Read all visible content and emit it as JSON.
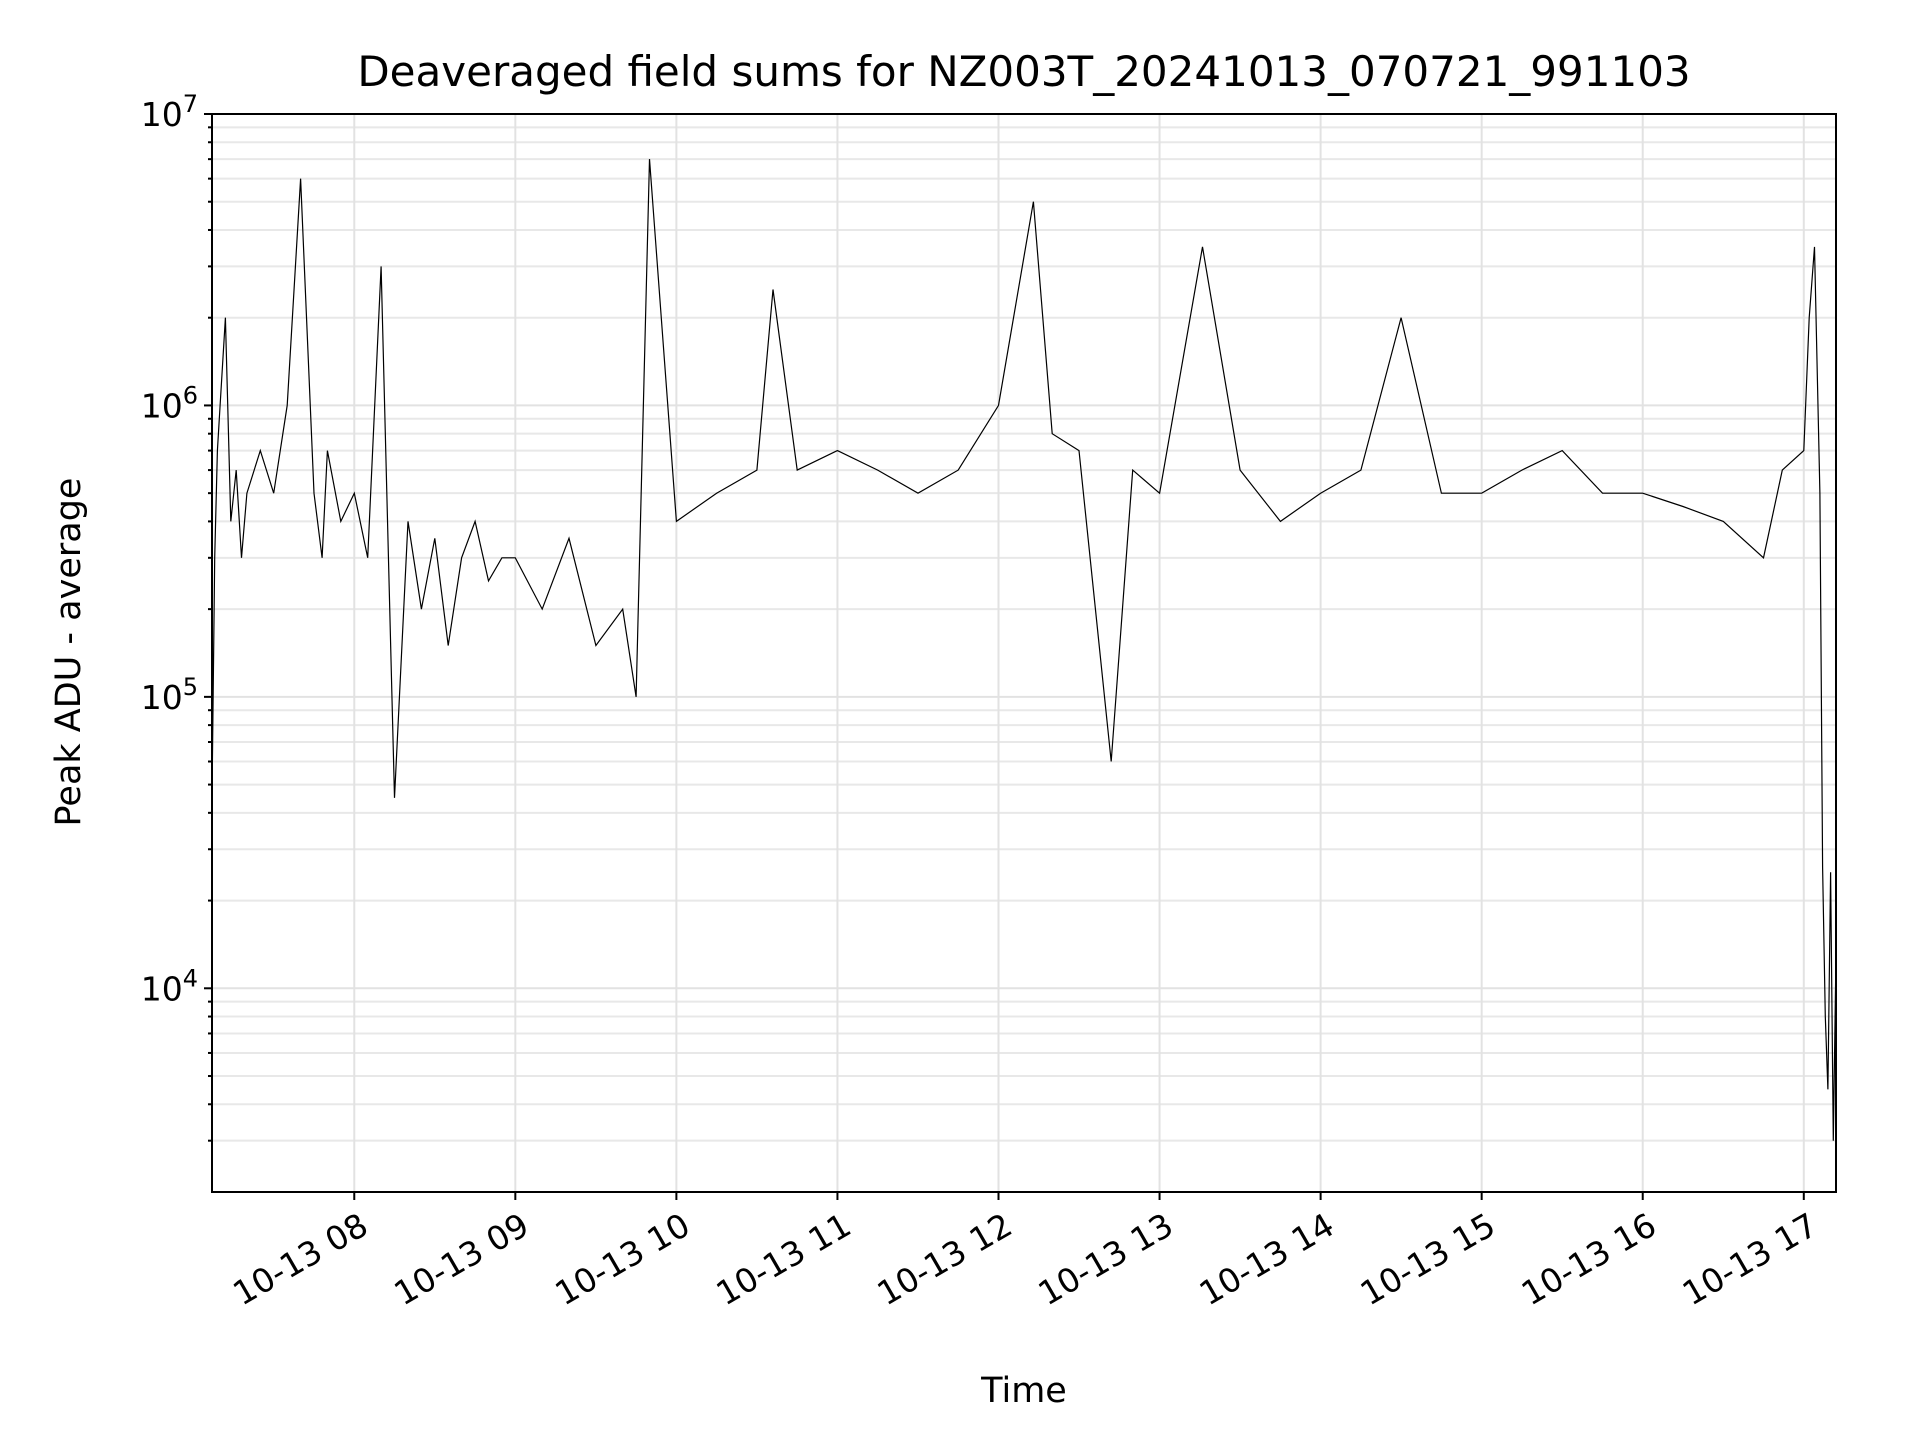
{
  "chart_data": {
    "type": "line",
    "title": "Deaveraged field sums for NZ003T_20241013_070721_991103",
    "xlabel": "Time",
    "ylabel": "Peak ADU - average",
    "y_scale": "log",
    "ylim": [
      2000,
      10000000
    ],
    "y_ticks": [
      {
        "value": 10000,
        "base": "10",
        "exp": "4"
      },
      {
        "value": 100000,
        "base": "10",
        "exp": "5"
      },
      {
        "value": 1000000,
        "base": "10",
        "exp": "6"
      },
      {
        "value": 10000000,
        "base": "10",
        "exp": "7"
      }
    ],
    "xlim": [
      "2024-10-13T07:07:00",
      "2024-10-13T17:12:00"
    ],
    "x_ticks": [
      {
        "value": "2024-10-13T08:00:00",
        "label": "10-13 08"
      },
      {
        "value": "2024-10-13T09:00:00",
        "label": "10-13 09"
      },
      {
        "value": "2024-10-13T10:00:00",
        "label": "10-13 10"
      },
      {
        "value": "2024-10-13T11:00:00",
        "label": "10-13 11"
      },
      {
        "value": "2024-10-13T12:00:00",
        "label": "10-13 12"
      },
      {
        "value": "2024-10-13T13:00:00",
        "label": "10-13 13"
      },
      {
        "value": "2024-10-13T14:00:00",
        "label": "10-13 14"
      },
      {
        "value": "2024-10-13T15:00:00",
        "label": "10-13 15"
      },
      {
        "value": "2024-10-13T16:00:00",
        "label": "10-13 16"
      },
      {
        "value": "2024-10-13T17:00:00",
        "label": "10-13 17"
      }
    ],
    "grid": true,
    "line_color": "#000000",
    "series": [
      {
        "x": [
          "2024-10-13T07:07:00",
          "2024-10-13T07:08:00",
          "2024-10-13T07:09:00",
          "2024-10-13T07:10:00",
          "2024-10-13T07:12:00",
          "2024-10-13T07:14:00",
          "2024-10-13T07:16:00",
          "2024-10-13T07:18:00",
          "2024-10-13T07:20:00",
          "2024-10-13T07:25:00",
          "2024-10-13T07:30:00",
          "2024-10-13T07:35:00",
          "2024-10-13T07:40:00",
          "2024-10-13T07:45:00",
          "2024-10-13T07:48:00",
          "2024-10-13T07:50:00",
          "2024-10-13T07:55:00",
          "2024-10-13T08:00:00",
          "2024-10-13T08:05:00",
          "2024-10-13T08:10:00",
          "2024-10-13T08:15:00",
          "2024-10-13T08:20:00",
          "2024-10-13T08:25:00",
          "2024-10-13T08:30:00",
          "2024-10-13T08:35:00",
          "2024-10-13T08:40:00",
          "2024-10-13T08:45:00",
          "2024-10-13T08:50:00",
          "2024-10-13T08:55:00",
          "2024-10-13T09:00:00",
          "2024-10-13T09:10:00",
          "2024-10-13T09:20:00",
          "2024-10-13T09:30:00",
          "2024-10-13T09:40:00",
          "2024-10-13T09:45:00",
          "2024-10-13T09:50:00",
          "2024-10-13T10:00:00",
          "2024-10-13T10:15:00",
          "2024-10-13T10:30:00",
          "2024-10-13T10:36:00",
          "2024-10-13T10:45:00",
          "2024-10-13T11:00:00",
          "2024-10-13T11:15:00",
          "2024-10-13T11:30:00",
          "2024-10-13T11:45:00",
          "2024-10-13T12:00:00",
          "2024-10-13T12:13:00",
          "2024-10-13T12:20:00",
          "2024-10-13T12:30:00",
          "2024-10-13T12:42:00",
          "2024-10-13T12:50:00",
          "2024-10-13T13:00:00",
          "2024-10-13T13:16:00",
          "2024-10-13T13:30:00",
          "2024-10-13T13:45:00",
          "2024-10-13T14:00:00",
          "2024-10-13T14:15:00",
          "2024-10-13T14:30:00",
          "2024-10-13T14:45:00",
          "2024-10-13T15:00:00",
          "2024-10-13T15:15:00",
          "2024-10-13T15:30:00",
          "2024-10-13T15:45:00",
          "2024-10-13T16:00:00",
          "2024-10-13T16:15:00",
          "2024-10-13T16:30:00",
          "2024-10-13T16:45:00",
          "2024-10-13T16:52:00",
          "2024-10-13T17:00:00",
          "2024-10-13T17:02:00",
          "2024-10-13T17:04:00",
          "2024-10-13T17:06:00",
          "2024-10-13T17:07:00",
          "2024-10-13T17:08:00",
          "2024-10-13T17:09:00",
          "2024-10-13T17:10:00",
          "2024-10-13T17:11:00",
          "2024-10-13T17:12:00"
        ],
        "y": [
          45000,
          300000,
          700000,
          1000000,
          2000000,
          400000,
          600000,
          300000,
          500000,
          700000,
          500000,
          1000000,
          6000000,
          500000,
          300000,
          700000,
          400000,
          500000,
          300000,
          3000000,
          45000,
          400000,
          200000,
          350000,
          150000,
          300000,
          400000,
          250000,
          300000,
          300000,
          200000,
          350000,
          150000,
          200000,
          100000,
          7000000,
          400000,
          500000,
          600000,
          2500000,
          600000,
          700000,
          600000,
          500000,
          600000,
          1000000,
          5000000,
          800000,
          700000,
          60000,
          600000,
          500000,
          3500000,
          600000,
          400000,
          500000,
          600000,
          2000000,
          500000,
          500000,
          600000,
          700000,
          500000,
          500000,
          450000,
          400000,
          300000,
          600000,
          700000,
          2000000,
          3500000,
          500000,
          26000,
          8000,
          4500,
          25000,
          3000,
          13000
        ]
      }
    ]
  }
}
